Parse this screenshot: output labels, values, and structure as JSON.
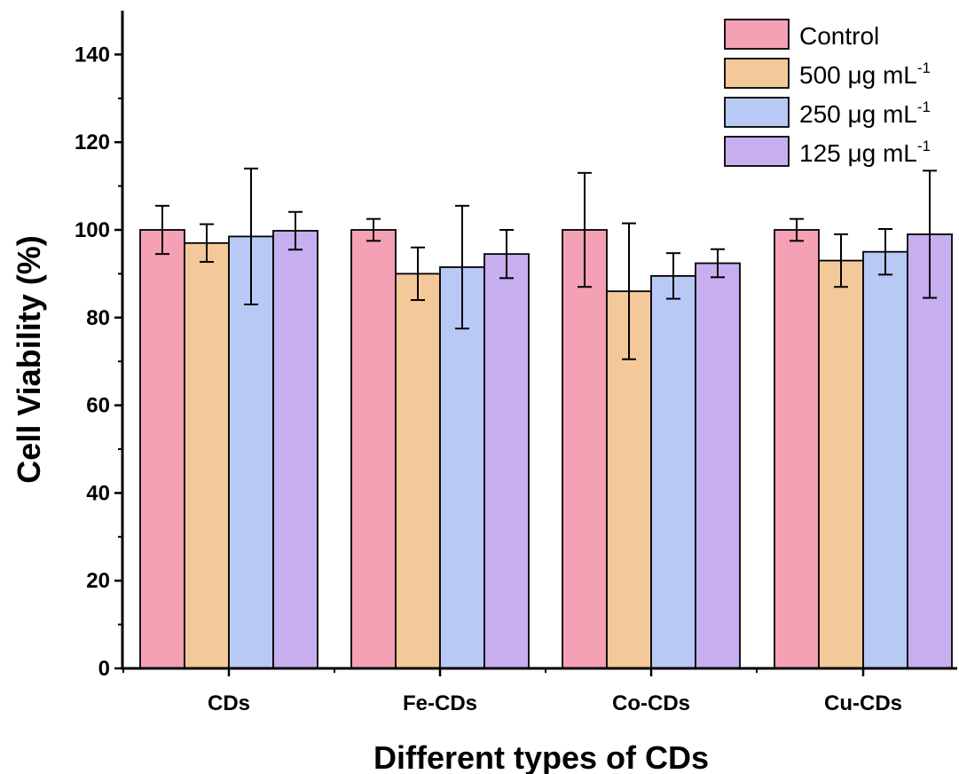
{
  "chart_data": {
    "type": "bar",
    "title": "",
    "xlabel": "Different types of CDs",
    "ylabel": "Cell Viability (%)",
    "ylim": [
      0,
      150
    ],
    "yticks": [
      0,
      20,
      40,
      60,
      80,
      100,
      120,
      140
    ],
    "categories": [
      "CDs",
      "Fe-CDs",
      "Co-CDs",
      "Cu-CDs"
    ],
    "legend_position": "top-right",
    "error_bars": true,
    "series": [
      {
        "name": "Control",
        "legend_sup": "",
        "color": "#F4A0B5",
        "values": [
          100,
          100,
          100,
          100
        ],
        "errors": [
          5.5,
          2.5,
          13,
          2.5
        ]
      },
      {
        "name": "500 μg mL",
        "legend_sup": "-1",
        "color": "#F4C999",
        "values": [
          97,
          90,
          86,
          93
        ],
        "errors": [
          4.3,
          6,
          15.5,
          6
        ]
      },
      {
        "name": "250 μg mL",
        "legend_sup": "-1",
        "color": "#B8C9F6",
        "values": [
          98.5,
          91.5,
          89.5,
          95
        ],
        "errors": [
          15.5,
          14,
          5.2,
          5.2
        ]
      },
      {
        "name": "125 μg mL",
        "legend_sup": "-1",
        "color": "#C6AEEF",
        "values": [
          99.8,
          94.5,
          92.4,
          99
        ],
        "errors": [
          4.3,
          5.5,
          3.2,
          14.5
        ]
      }
    ]
  }
}
